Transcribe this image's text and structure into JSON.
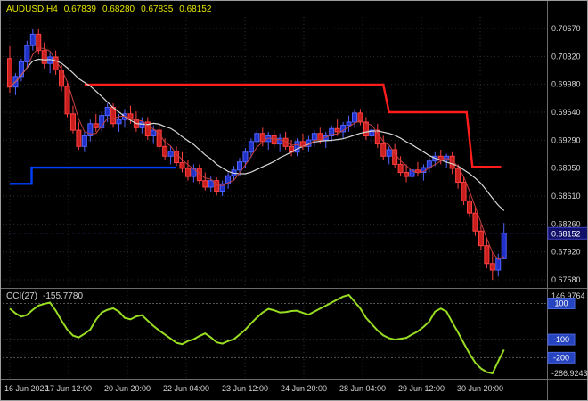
{
  "header": {
    "symbol": "AUDUSD,H4",
    "open": "0.67839",
    "high": "0.68280",
    "low": "0.67835",
    "close": "0.68152"
  },
  "price_axis": {
    "current_price": "0.68152"
  },
  "indicator": {
    "name": "CCI(27)",
    "value": "-155.7780",
    "scale_max_label": "146.9764",
    "scale_min_label": "-286.9243",
    "levels_labels": [
      "100",
      "-100",
      "-200"
    ]
  },
  "colors": {
    "background": "#000000",
    "grid": "#2d2d2d",
    "axis_text": "#d4d4d4",
    "bull_fill": "#2030c8",
    "bull_stroke": "#5064ff",
    "bear_fill": "#c81e1e",
    "bear_stroke": "#ff4040",
    "ma_slow": "#d8d8d8",
    "ma_fast": "#c84040",
    "level_blue": "#0040ff",
    "level_red": "#ff1c1c",
    "cci": "#99dd22",
    "price_line": "#3a3a9a",
    "price_badge_bg": "#10106a",
    "price_badge_border": "#4040c0",
    "badge_bg": "#2744c0",
    "badge_border": "#4a66e0",
    "separator": "#6a6a6a",
    "header_text": "#e6e600"
  },
  "chart_data": {
    "type": "candlestick",
    "symbol": "AUDUSD",
    "timeframe": "H4",
    "ohlc_current": {
      "open": 0.67839,
      "high": 0.6828,
      "low": 0.67835,
      "close": 0.68152
    },
    "y_axis_labels": [
      "0.70670",
      "0.70320",
      "0.69980",
      "0.69640",
      "0.69290",
      "0.68950",
      "0.68610",
      "0.68260",
      "0.67920",
      "0.67580"
    ],
    "x_axis_labels": [
      "16 Jun 2022",
      "17 Jun 12:00",
      "20 Jun 20:00",
      "22 Jun 04:00",
      "23 Jun 12:00",
      "24 Jun 20:00",
      "28 Jun 04:00",
      "29 Jun 12:00",
      "30 Jun 20:00"
    ],
    "candles": [
      [
        0.703,
        0.7045,
        0.6988,
        0.6995
      ],
      [
        0.6995,
        0.7012,
        0.6985,
        0.7008
      ],
      [
        0.7008,
        0.703,
        0.7002,
        0.7026
      ],
      [
        0.7026,
        0.7052,
        0.7018,
        0.7046
      ],
      [
        0.7046,
        0.7067,
        0.704,
        0.706
      ],
      [
        0.706,
        0.7066,
        0.7035,
        0.704
      ],
      [
        0.704,
        0.705,
        0.7018,
        0.7024
      ],
      [
        0.7024,
        0.7038,
        0.7012,
        0.7032
      ],
      [
        0.7032,
        0.704,
        0.701,
        0.7016
      ],
      [
        0.7016,
        0.7022,
        0.699,
        0.6996
      ],
      [
        0.6996,
        0.7,
        0.6958,
        0.6962
      ],
      [
        0.6962,
        0.6972,
        0.6938,
        0.6942
      ],
      [
        0.6942,
        0.6952,
        0.6918,
        0.6922
      ],
      [
        0.6922,
        0.694,
        0.6915,
        0.6935
      ],
      [
        0.6935,
        0.6955,
        0.6928,
        0.695
      ],
      [
        0.695,
        0.6962,
        0.694,
        0.6945
      ],
      [
        0.6945,
        0.6965,
        0.694,
        0.696
      ],
      [
        0.696,
        0.6975,
        0.6952,
        0.697
      ],
      [
        0.697,
        0.6975,
        0.6945,
        0.695
      ],
      [
        0.695,
        0.6962,
        0.694,
        0.6955
      ],
      [
        0.6955,
        0.6968,
        0.6945,
        0.6962
      ],
      [
        0.6962,
        0.6972,
        0.695,
        0.6955
      ],
      [
        0.6955,
        0.6965,
        0.694,
        0.6945
      ],
      [
        0.6945,
        0.6958,
        0.6938,
        0.6952
      ],
      [
        0.6952,
        0.6958,
        0.693,
        0.6935
      ],
      [
        0.6935,
        0.6948,
        0.6925,
        0.6942
      ],
      [
        0.6942,
        0.695,
        0.6918,
        0.6922
      ],
      [
        0.6922,
        0.6932,
        0.6905,
        0.691
      ],
      [
        0.691,
        0.6922,
        0.69,
        0.6916
      ],
      [
        0.6916,
        0.6922,
        0.6898,
        0.6902
      ],
      [
        0.6902,
        0.6915,
        0.689,
        0.6895
      ],
      [
        0.6895,
        0.6905,
        0.688,
        0.6885
      ],
      [
        0.6885,
        0.69,
        0.6878,
        0.6895
      ],
      [
        0.6895,
        0.69,
        0.6875,
        0.688
      ],
      [
        0.688,
        0.689,
        0.6868,
        0.6872
      ],
      [
        0.6872,
        0.6885,
        0.6866,
        0.688
      ],
      [
        0.688,
        0.6884,
        0.6862,
        0.6867
      ],
      [
        0.6867,
        0.688,
        0.6861,
        0.6876
      ],
      [
        0.6876,
        0.689,
        0.687,
        0.6886
      ],
      [
        0.6886,
        0.6898,
        0.688,
        0.6893
      ],
      [
        0.6893,
        0.6908,
        0.6885,
        0.6903
      ],
      [
        0.6903,
        0.692,
        0.6896,
        0.6915
      ],
      [
        0.6915,
        0.6932,
        0.6908,
        0.6928
      ],
      [
        0.6928,
        0.6942,
        0.692,
        0.6938
      ],
      [
        0.6938,
        0.6945,
        0.6922,
        0.6928
      ],
      [
        0.6928,
        0.694,
        0.6918,
        0.6935
      ],
      [
        0.6935,
        0.6942,
        0.692,
        0.6925
      ],
      [
        0.6925,
        0.6938,
        0.6915,
        0.6932
      ],
      [
        0.6932,
        0.694,
        0.6918,
        0.6922
      ],
      [
        0.6922,
        0.693,
        0.691,
        0.6915
      ],
      [
        0.6915,
        0.6932,
        0.691,
        0.6928
      ],
      [
        0.6928,
        0.6938,
        0.6918,
        0.6922
      ],
      [
        0.6922,
        0.6935,
        0.6915,
        0.693
      ],
      [
        0.693,
        0.6942,
        0.6922,
        0.6938
      ],
      [
        0.6938,
        0.6945,
        0.6925,
        0.693
      ],
      [
        0.693,
        0.694,
        0.692,
        0.6935
      ],
      [
        0.6935,
        0.6948,
        0.6928,
        0.6944
      ],
      [
        0.6944,
        0.6955,
        0.6935,
        0.694
      ],
      [
        0.694,
        0.6952,
        0.6932,
        0.6948
      ],
      [
        0.6948,
        0.696,
        0.694,
        0.6952
      ],
      [
        0.6952,
        0.6968,
        0.6945,
        0.6963
      ],
      [
        0.6963,
        0.6968,
        0.6948,
        0.6952
      ],
      [
        0.6952,
        0.6958,
        0.693,
        0.6935
      ],
      [
        0.6935,
        0.6948,
        0.6925,
        0.6942
      ],
      [
        0.6942,
        0.695,
        0.692,
        0.6925
      ],
      [
        0.6925,
        0.6935,
        0.6905,
        0.691
      ],
      [
        0.691,
        0.6922,
        0.69,
        0.6918
      ],
      [
        0.6918,
        0.6925,
        0.6895,
        0.69
      ],
      [
        0.69,
        0.691,
        0.6885,
        0.689
      ],
      [
        0.689,
        0.69,
        0.6878,
        0.6885
      ],
      [
        0.6885,
        0.6898,
        0.6878,
        0.6893
      ],
      [
        0.6893,
        0.6903,
        0.6885,
        0.689
      ],
      [
        0.689,
        0.69,
        0.688,
        0.6896
      ],
      [
        0.6896,
        0.6908,
        0.689,
        0.6904
      ],
      [
        0.6904,
        0.6915,
        0.6898,
        0.691
      ],
      [
        0.691,
        0.6918,
        0.69,
        0.6905
      ],
      [
        0.6905,
        0.6913,
        0.6895,
        0.691
      ],
      [
        0.691,
        0.6915,
        0.6888,
        0.6895
      ],
      [
        0.6895,
        0.69,
        0.687,
        0.6878
      ],
      [
        0.6878,
        0.6885,
        0.685,
        0.6855
      ],
      [
        0.6855,
        0.6862,
        0.6835,
        0.684
      ],
      [
        0.684,
        0.6848,
        0.6812,
        0.6818
      ],
      [
        0.6818,
        0.6825,
        0.6795,
        0.68
      ],
      [
        0.68,
        0.681,
        0.6772,
        0.6778
      ],
      [
        0.6778,
        0.6792,
        0.6758,
        0.677
      ],
      [
        0.677,
        0.679,
        0.6762,
        0.6784
      ],
      [
        0.67839,
        0.6828,
        0.67835,
        0.68152
      ]
    ],
    "overlay_lines": {
      "blue_support_steps": [
        [
          0,
          0.6876
        ],
        [
          3.8,
          0.6876
        ],
        [
          3.8,
          0.6896
        ],
        [
          29,
          0.6896
        ]
      ],
      "red_resistance_steps": [
        [
          13,
          0.6998
        ],
        [
          65,
          0.6998
        ],
        [
          66,
          0.6964
        ],
        [
          79.5,
          0.6964
        ],
        [
          80.5,
          0.6897
        ],
        [
          85.5,
          0.6897
        ]
      ]
    },
    "moving_averages": {
      "fast_period": 4,
      "slow_period": 13
    },
    "indicator": {
      "type": "line",
      "name": "CCI",
      "period": 27,
      "current": -155.778,
      "scale_max": 146.9764,
      "scale_min": -286.9243,
      "levels": [
        100,
        -100,
        -200
      ],
      "values": [
        72,
        45,
        27,
        37,
        65,
        88,
        98,
        105,
        60,
        5,
        -45,
        -78,
        -88,
        -68,
        -45,
        10,
        50,
        65,
        73,
        55,
        20,
        12,
        28,
        35,
        5,
        -25,
        -50,
        -72,
        -95,
        -118,
        -125,
        -108,
        -98,
        -80,
        -66,
        -88,
        -115,
        -122,
        -108,
        -98,
        -72,
        -45,
        -10,
        22,
        50,
        70,
        62,
        50,
        52,
        58,
        60,
        48,
        38,
        55,
        72,
        88,
        105,
        122,
        138,
        146.98,
        110,
        72,
        20,
        -15,
        -50,
        -77,
        -92,
        -100,
        -95,
        -90,
        -72,
        -55,
        -30,
        0,
        55,
        72,
        55,
        -5,
        -60,
        -120,
        -178,
        -228,
        -260,
        -280,
        -286.92,
        -220,
        -155.78
      ]
    }
  }
}
